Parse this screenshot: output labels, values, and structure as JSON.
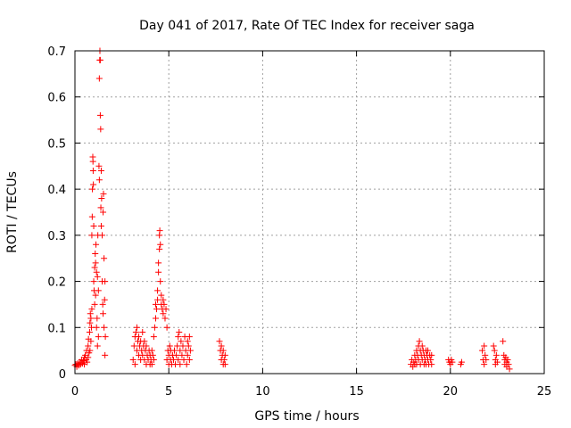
{
  "chart_data": {
    "type": "scatter",
    "title": "Day 041 of 2017, Rate Of TEC Index for receiver saga",
    "xlabel": "GPS time / hours",
    "ylabel": "ROTI / TECUs",
    "xlim": [
      0,
      25
    ],
    "ylim": [
      0,
      0.7
    ],
    "xticks": [
      "0",
      "5",
      "10",
      "15",
      "20",
      "25"
    ],
    "yticks": [
      "0",
      "0.1",
      "0.2",
      "0.3",
      "0.4",
      "0.5",
      "0.6",
      "0.7"
    ],
    "grid": true,
    "marker": "+",
    "color": "#ff0000",
    "series": [
      {
        "points": [
          [
            0.0,
            0.018
          ],
          [
            0.05,
            0.02
          ],
          [
            0.1,
            0.015
          ],
          [
            0.15,
            0.022
          ],
          [
            0.2,
            0.018
          ],
          [
            0.25,
            0.025
          ],
          [
            0.3,
            0.02
          ],
          [
            0.35,
            0.03
          ],
          [
            0.4,
            0.022
          ],
          [
            0.45,
            0.028
          ],
          [
            0.5,
            0.035
          ],
          [
            0.5,
            0.02
          ],
          [
            0.55,
            0.04
          ],
          [
            0.6,
            0.03
          ],
          [
            0.62,
            0.05
          ],
          [
            0.65,
            0.025
          ],
          [
            0.7,
            0.06
          ],
          [
            0.7,
            0.035
          ],
          [
            0.72,
            0.075
          ],
          [
            0.75,
            0.045
          ],
          [
            0.78,
            0.09
          ],
          [
            0.8,
            0.11
          ],
          [
            0.8,
            0.05
          ],
          [
            0.82,
            0.13
          ],
          [
            0.85,
            0.07
          ],
          [
            0.85,
            0.12
          ],
          [
            0.88,
            0.1
          ],
          [
            0.9,
            0.14
          ],
          [
            0.9,
            0.3
          ],
          [
            0.92,
            0.34
          ],
          [
            0.93,
            0.4
          ],
          [
            0.95,
            0.47
          ],
          [
            0.96,
            0.46
          ],
          [
            0.97,
            0.44
          ],
          [
            0.98,
            0.41
          ],
          [
            1.0,
            0.32
          ],
          [
            1.0,
            0.2
          ],
          [
            1.02,
            0.18
          ],
          [
            1.05,
            0.23
          ],
          [
            1.05,
            0.15
          ],
          [
            1.08,
            0.26
          ],
          [
            1.1,
            0.24
          ],
          [
            1.1,
            0.17
          ],
          [
            1.12,
            0.28
          ],
          [
            1.15,
            0.22
          ],
          [
            1.15,
            0.1
          ],
          [
            1.18,
            0.12
          ],
          [
            1.2,
            0.21
          ],
          [
            1.2,
            0.06
          ],
          [
            1.22,
            0.3
          ],
          [
            1.25,
            0.18
          ],
          [
            1.25,
            0.08
          ],
          [
            1.28,
            0.45
          ],
          [
            1.3,
            0.42
          ],
          [
            1.3,
            0.64
          ],
          [
            1.32,
            0.68
          ],
          [
            1.33,
            0.7
          ],
          [
            1.35,
            0.68
          ],
          [
            1.35,
            0.56
          ],
          [
            1.37,
            0.53
          ],
          [
            1.38,
            0.36
          ],
          [
            1.4,
            0.32
          ],
          [
            1.4,
            0.44
          ],
          [
            1.42,
            0.38
          ],
          [
            1.45,
            0.3
          ],
          [
            1.45,
            0.2
          ],
          [
            1.48,
            0.15
          ],
          [
            1.5,
            0.13
          ],
          [
            1.5,
            0.35
          ],
          [
            1.52,
            0.39
          ],
          [
            1.55,
            0.25
          ],
          [
            1.55,
            0.1
          ],
          [
            1.58,
            0.16
          ],
          [
            1.6,
            0.2
          ],
          [
            1.6,
            0.04
          ],
          [
            1.62,
            0.08
          ],
          [
            3.1,
            0.03
          ],
          [
            3.15,
            0.06
          ],
          [
            3.2,
            0.08
          ],
          [
            3.2,
            0.02
          ],
          [
            3.25,
            0.09
          ],
          [
            3.3,
            0.05
          ],
          [
            3.3,
            0.1
          ],
          [
            3.35,
            0.07
          ],
          [
            3.4,
            0.04
          ],
          [
            3.4,
            0.08
          ],
          [
            3.45,
            0.06
          ],
          [
            3.5,
            0.03
          ],
          [
            3.5,
            0.07
          ],
          [
            3.55,
            0.05
          ],
          [
            3.6,
            0.09
          ],
          [
            3.6,
            0.04
          ],
          [
            3.65,
            0.06
          ],
          [
            3.7,
            0.03
          ],
          [
            3.7,
            0.07
          ],
          [
            3.75,
            0.05
          ],
          [
            3.8,
            0.02
          ],
          [
            3.8,
            0.06
          ],
          [
            3.85,
            0.04
          ],
          [
            3.9,
            0.03
          ],
          [
            3.95,
            0.05
          ],
          [
            4.0,
            0.02
          ],
          [
            4.0,
            0.04
          ],
          [
            4.05,
            0.03
          ],
          [
            4.1,
            0.05
          ],
          [
            4.1,
            0.02
          ],
          [
            4.15,
            0.04
          ],
          [
            4.2,
            0.03
          ],
          [
            4.2,
            0.08
          ],
          [
            4.25,
            0.1
          ],
          [
            4.3,
            0.12
          ],
          [
            4.3,
            0.15
          ],
          [
            4.35,
            0.14
          ],
          [
            4.4,
            0.16
          ],
          [
            4.4,
            0.18
          ],
          [
            4.45,
            0.22
          ],
          [
            4.45,
            0.24
          ],
          [
            4.5,
            0.27
          ],
          [
            4.5,
            0.3
          ],
          [
            4.52,
            0.31
          ],
          [
            4.55,
            0.28
          ],
          [
            4.55,
            0.2
          ],
          [
            4.6,
            0.17
          ],
          [
            4.6,
            0.15
          ],
          [
            4.65,
            0.14
          ],
          [
            4.7,
            0.16
          ],
          [
            4.7,
            0.13
          ],
          [
            4.75,
            0.15
          ],
          [
            4.8,
            0.12
          ],
          [
            4.85,
            0.14
          ],
          [
            4.9,
            0.1
          ],
          [
            4.9,
            0.03
          ],
          [
            4.95,
            0.05
          ],
          [
            5.0,
            0.02
          ],
          [
            5.0,
            0.04
          ],
          [
            5.05,
            0.06
          ],
          [
            5.1,
            0.03
          ],
          [
            5.1,
            0.05
          ],
          [
            5.15,
            0.02
          ],
          [
            5.2,
            0.04
          ],
          [
            5.25,
            0.03
          ],
          [
            5.3,
            0.05
          ],
          [
            5.35,
            0.02
          ],
          [
            5.4,
            0.04
          ],
          [
            5.45,
            0.06
          ],
          [
            5.5,
            0.03
          ],
          [
            5.5,
            0.08
          ],
          [
            5.55,
            0.09
          ],
          [
            5.6,
            0.05
          ],
          [
            5.6,
            0.02
          ],
          [
            5.65,
            0.07
          ],
          [
            5.7,
            0.04
          ],
          [
            5.75,
            0.06
          ],
          [
            5.8,
            0.03
          ],
          [
            5.85,
            0.08
          ],
          [
            5.9,
            0.05
          ],
          [
            5.95,
            0.02
          ],
          [
            6.0,
            0.07
          ],
          [
            6.0,
            0.04
          ],
          [
            6.05,
            0.06
          ],
          [
            6.1,
            0.03
          ],
          [
            6.1,
            0.08
          ],
          [
            6.15,
            0.05
          ],
          [
            7.7,
            0.07
          ],
          [
            7.75,
            0.05
          ],
          [
            7.8,
            0.03
          ],
          [
            7.8,
            0.06
          ],
          [
            7.85,
            0.04
          ],
          [
            7.9,
            0.02
          ],
          [
            7.9,
            0.05
          ],
          [
            7.95,
            0.03
          ],
          [
            8.0,
            0.04
          ],
          [
            8.0,
            0.02
          ],
          [
            17.9,
            0.02
          ],
          [
            17.95,
            0.03
          ],
          [
            18.0,
            0.015
          ],
          [
            18.05,
            0.025
          ],
          [
            18.1,
            0.04
          ],
          [
            18.1,
            0.02
          ],
          [
            18.15,
            0.03
          ],
          [
            18.2,
            0.05
          ],
          [
            18.2,
            0.02
          ],
          [
            18.25,
            0.04
          ],
          [
            18.3,
            0.06
          ],
          [
            18.3,
            0.03
          ],
          [
            18.35,
            0.07
          ],
          [
            18.4,
            0.05
          ],
          [
            18.4,
            0.02
          ],
          [
            18.45,
            0.04
          ],
          [
            18.5,
            0.06
          ],
          [
            18.5,
            0.03
          ],
          [
            18.55,
            0.05
          ],
          [
            18.6,
            0.02
          ],
          [
            18.6,
            0.04
          ],
          [
            18.65,
            0.03
          ],
          [
            18.7,
            0.05
          ],
          [
            18.7,
            0.02
          ],
          [
            18.75,
            0.04
          ],
          [
            18.8,
            0.03
          ],
          [
            18.8,
            0.05
          ],
          [
            18.85,
            0.02
          ],
          [
            18.9,
            0.04
          ],
          [
            18.95,
            0.03
          ],
          [
            19.0,
            0.02
          ],
          [
            19.0,
            0.04
          ],
          [
            19.9,
            0.03
          ],
          [
            19.95,
            0.025
          ],
          [
            20.0,
            0.02
          ],
          [
            20.05,
            0.03
          ],
          [
            20.1,
            0.025
          ],
          [
            20.55,
            0.02
          ],
          [
            20.6,
            0.025
          ],
          [
            21.7,
            0.05
          ],
          [
            21.75,
            0.03
          ],
          [
            21.8,
            0.02
          ],
          [
            21.8,
            0.06
          ],
          [
            21.85,
            0.04
          ],
          [
            21.9,
            0.03
          ],
          [
            22.3,
            0.06
          ],
          [
            22.35,
            0.05
          ],
          [
            22.4,
            0.03
          ],
          [
            22.4,
            0.02
          ],
          [
            22.45,
            0.04
          ],
          [
            22.5,
            0.025
          ],
          [
            22.8,
            0.07
          ],
          [
            22.85,
            0.04
          ],
          [
            22.9,
            0.03
          ],
          [
            22.9,
            0.02
          ],
          [
            22.95,
            0.035
          ],
          [
            23.0,
            0.025
          ],
          [
            23.0,
            0.015
          ],
          [
            23.05,
            0.03
          ],
          [
            23.1,
            0.02
          ],
          [
            23.15,
            0.01
          ]
        ]
      }
    ]
  }
}
